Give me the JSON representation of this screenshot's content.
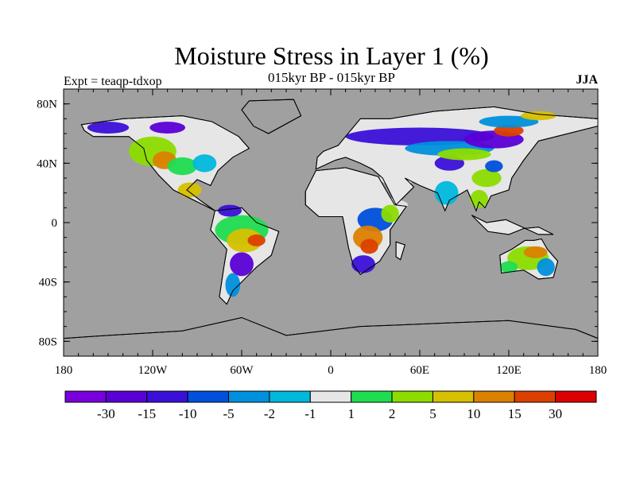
{
  "title": "Moisture Stress in Layer 1 (%)",
  "subtitle": "015kyr BP - 015kyr BP",
  "experiment_label": "Expt = teaqp-tdxop",
  "season": "JJA",
  "map": {
    "ocean_color": "#a0a0a0",
    "lat_labels": [
      "80N",
      "40N",
      "0",
      "40S",
      "80S"
    ],
    "lat_values": [
      80,
      40,
      0,
      -40,
      -80
    ],
    "lon_labels": [
      "180",
      "120W",
      "60W",
      "0",
      "60E",
      "120E",
      "180"
    ],
    "lon_values": [
      -180,
      -120,
      -60,
      0,
      60,
      120,
      180
    ]
  },
  "colorbar": {
    "colors": [
      "#7800dc",
      "#5a00d6",
      "#3a10d8",
      "#0050dc",
      "#0090dc",
      "#00b8dc",
      "#e6e6e6",
      "#20dc50",
      "#8cdc00",
      "#d6c000",
      "#dc8000",
      "#dc4000",
      "#dc0000"
    ],
    "labels": [
      "-30",
      "-15",
      "-10",
      "-5",
      "-2",
      "-1",
      "1",
      "2",
      "5",
      "10",
      "15",
      "30"
    ]
  }
}
